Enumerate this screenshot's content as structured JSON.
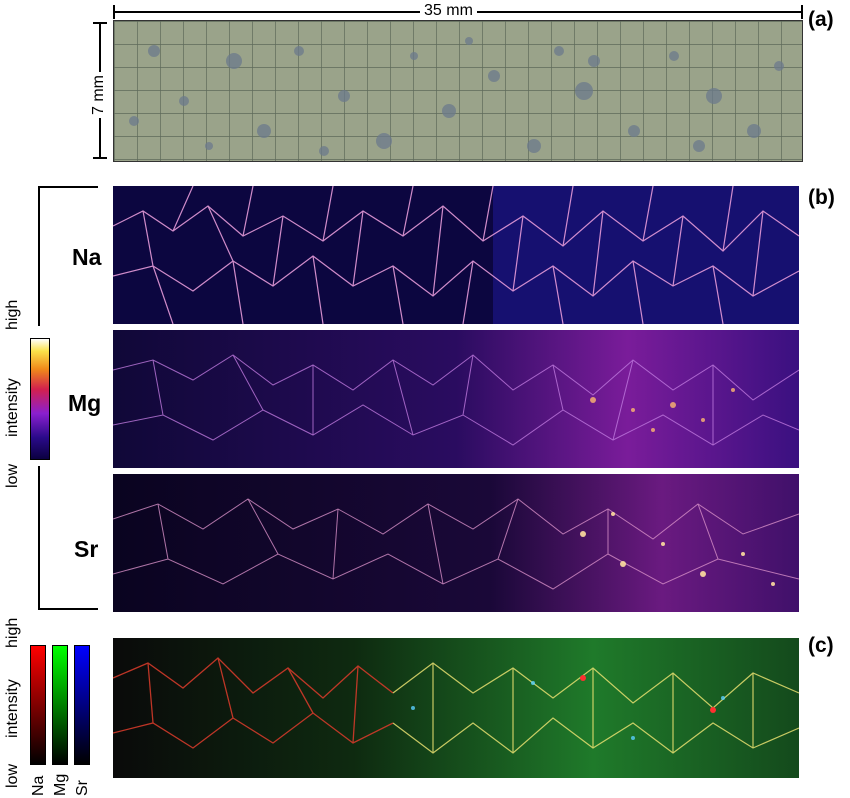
{
  "panels": {
    "a": {
      "label": "(a)",
      "scale_horizontal": "35 mm",
      "scale_vertical": "7 mm"
    },
    "b": {
      "label": "(b)",
      "elements": [
        "Na",
        "Mg",
        "Sr"
      ]
    },
    "c": {
      "label": "(c)"
    }
  },
  "colorbar_b": {
    "high": "high",
    "title": "intensity",
    "low": "low"
  },
  "colorbar_c": {
    "high": "high",
    "title": "intensity",
    "low": "low",
    "channels": [
      "Na",
      "Mg",
      "Sr"
    ]
  },
  "colors": {
    "red": "#ff0000",
    "green": "#00ff00",
    "blue": "#0000ff",
    "fire_low": "#0b0040",
    "fire_mid": "#9b2fd6",
    "fire_high": "#ffffff"
  }
}
